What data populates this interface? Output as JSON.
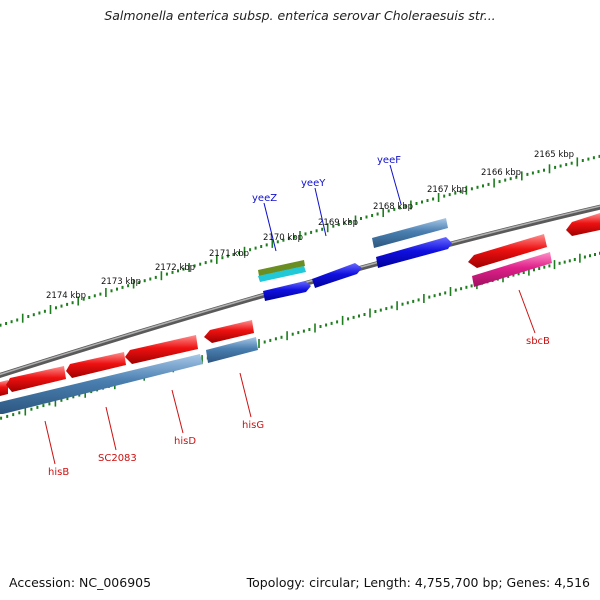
{
  "title": "Salmonella enterica subsp. enterica serovar Choleraesuis str...",
  "footer": {
    "accession": "Accession: NC_006905",
    "summary": "Topology: circular; Length: 4,755,700 bp; Genes: 4,516"
  },
  "colors": {
    "backbone": "#808080",
    "tick": "#1e7d1e",
    "gene_red": "#ee1111",
    "gene_steel": "#4a7fb0",
    "gene_blue": "#1010e0",
    "gene_olive": "#6b8e23",
    "gene_cyan": "#20c8d8",
    "gene_pink": "#e0208a",
    "label_blue": "#1010cc",
    "label_red": "#cc1111"
  },
  "scale_labels": [
    "2174 kbp",
    "2173 kbp",
    "2172 kbp",
    "2171 kbp",
    "2170 kbp",
    "2169 kbp",
    "2168 kbp",
    "2167 kbp",
    "2166 kbp",
    "2165 kbp"
  ],
  "gene_labels": {
    "forward": [
      "yeeZ",
      "yeeY",
      "yeeF"
    ],
    "reverse": [
      "sbcB",
      "hisG",
      "hisD",
      "SC2083",
      "hisB"
    ]
  }
}
